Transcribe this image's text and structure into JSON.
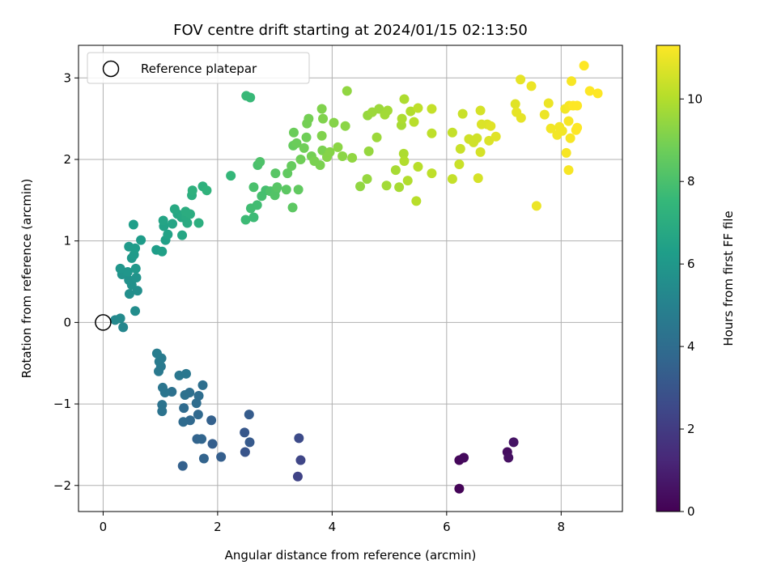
{
  "chart_data": {
    "type": "scatter",
    "title": "FOV centre drift starting at 2024/01/15 02:13:50",
    "xlabel": "Angular distance from reference (arcmin)",
    "ylabel": "Rotation from reference (arcmin)",
    "xlim": [
      -0.43,
      9.07
    ],
    "ylim": [
      -2.32,
      3.4
    ],
    "xticks": [
      0,
      2,
      4,
      6,
      8
    ],
    "yticks": [
      -2,
      -1,
      0,
      1,
      2,
      3
    ],
    "grid": true,
    "legend": {
      "position": "top-left",
      "entries": [
        {
          "label": "Reference platepar",
          "marker": "open-circle"
        }
      ]
    },
    "reference_point": {
      "x": 0,
      "y": 0
    },
    "colorbar": {
      "label": "Hours from first FF file",
      "range": [
        0,
        11.3
      ],
      "ticks": [
        0,
        2,
        4,
        6,
        8,
        10
      ],
      "colormap": "viridis"
    },
    "colormap_stops": [
      "#440154",
      "#482878",
      "#3e4989",
      "#31688e",
      "#26828e",
      "#1f9e89",
      "#35b779",
      "#6ece58",
      "#b5de2b",
      "#fde725"
    ],
    "points": [
      {
        "x": 6.22,
        "y": -2.04,
        "h": 0.1
      },
      {
        "x": 6.22,
        "y": -1.69,
        "h": 0.2
      },
      {
        "x": 6.3,
        "y": -1.66,
        "h": 0.3
      },
      {
        "x": 7.06,
        "y": -1.59,
        "h": 0.4
      },
      {
        "x": 7.08,
        "y": -1.66,
        "h": 0.5
      },
      {
        "x": 7.17,
        "y": -1.47,
        "h": 0.6
      },
      {
        "x": 3.4,
        "y": -1.89,
        "h": 2.3
      },
      {
        "x": 3.45,
        "y": -1.69,
        "h": 2.4
      },
      {
        "x": 3.42,
        "y": -1.42,
        "h": 2.6
      },
      {
        "x": 2.48,
        "y": -1.59,
        "h": 3.0
      },
      {
        "x": 2.47,
        "y": -1.35,
        "h": 3.1
      },
      {
        "x": 2.56,
        "y": -1.47,
        "h": 3.2
      },
      {
        "x": 2.55,
        "y": -1.13,
        "h": 3.3
      },
      {
        "x": 2.06,
        "y": -1.65,
        "h": 3.4
      },
      {
        "x": 1.91,
        "y": -1.49,
        "h": 3.4
      },
      {
        "x": 1.89,
        "y": -1.2,
        "h": 3.5
      },
      {
        "x": 1.39,
        "y": -1.76,
        "h": 3.5
      },
      {
        "x": 1.76,
        "y": -1.67,
        "h": 3.6
      },
      {
        "x": 1.64,
        "y": -1.43,
        "h": 3.6
      },
      {
        "x": 1.72,
        "y": -1.43,
        "h": 3.7
      },
      {
        "x": 1.66,
        "y": -1.13,
        "h": 3.8
      },
      {
        "x": 1.52,
        "y": -1.2,
        "h": 3.8
      },
      {
        "x": 1.4,
        "y": -1.22,
        "h": 3.9
      },
      {
        "x": 1.41,
        "y": -1.05,
        "h": 3.9
      },
      {
        "x": 1.63,
        "y": -0.99,
        "h": 4.0
      },
      {
        "x": 1.67,
        "y": -0.9,
        "h": 4.0
      },
      {
        "x": 1.74,
        "y": -0.77,
        "h": 4.1
      },
      {
        "x": 1.51,
        "y": -0.86,
        "h": 4.1
      },
      {
        "x": 1.43,
        "y": -0.89,
        "h": 4.2
      },
      {
        "x": 1.2,
        "y": -0.85,
        "h": 4.2
      },
      {
        "x": 1.03,
        "y": -1.09,
        "h": 4.3
      },
      {
        "x": 1.03,
        "y": -1.01,
        "h": 4.3
      },
      {
        "x": 1.08,
        "y": -0.86,
        "h": 4.4
      },
      {
        "x": 1.04,
        "y": -0.8,
        "h": 4.4
      },
      {
        "x": 1.33,
        "y": -0.65,
        "h": 4.5
      },
      {
        "x": 1.45,
        "y": -0.63,
        "h": 4.5
      },
      {
        "x": 0.97,
        "y": -0.6,
        "h": 4.6
      },
      {
        "x": 1.01,
        "y": -0.54,
        "h": 4.6
      },
      {
        "x": 0.98,
        "y": -0.48,
        "h": 4.7
      },
      {
        "x": 1.02,
        "y": -0.44,
        "h": 4.7
      },
      {
        "x": 0.94,
        "y": -0.38,
        "h": 4.8
      },
      {
        "x": 0.35,
        "y": -0.06,
        "h": 5.2
      },
      {
        "x": 0.21,
        "y": 0.03,
        "h": 5.3
      },
      {
        "x": 0.3,
        "y": 0.05,
        "h": 5.4
      },
      {
        "x": 0.56,
        "y": 0.14,
        "h": 5.5
      },
      {
        "x": 0.46,
        "y": 0.35,
        "h": 5.6
      },
      {
        "x": 0.6,
        "y": 0.39,
        "h": 5.6
      },
      {
        "x": 0.5,
        "y": 0.46,
        "h": 5.7
      },
      {
        "x": 0.45,
        "y": 0.52,
        "h": 5.7
      },
      {
        "x": 0.58,
        "y": 0.55,
        "h": 5.8
      },
      {
        "x": 0.33,
        "y": 0.59,
        "h": 5.8
      },
      {
        "x": 0.43,
        "y": 0.62,
        "h": 5.9
      },
      {
        "x": 0.3,
        "y": 0.66,
        "h": 5.9
      },
      {
        "x": 0.57,
        "y": 0.66,
        "h": 6.0
      },
      {
        "x": 0.5,
        "y": 0.79,
        "h": 6.0
      },
      {
        "x": 0.54,
        "y": 0.83,
        "h": 6.1
      },
      {
        "x": 0.45,
        "y": 0.93,
        "h": 6.1
      },
      {
        "x": 0.56,
        "y": 0.91,
        "h": 6.2
      },
      {
        "x": 0.66,
        "y": 1.01,
        "h": 6.2
      },
      {
        "x": 0.53,
        "y": 1.2,
        "h": 6.3
      },
      {
        "x": 0.93,
        "y": 0.89,
        "h": 6.3
      },
      {
        "x": 1.03,
        "y": 0.87,
        "h": 6.4
      },
      {
        "x": 1.09,
        "y": 1.01,
        "h": 6.4
      },
      {
        "x": 1.13,
        "y": 1.08,
        "h": 6.5
      },
      {
        "x": 1.06,
        "y": 1.18,
        "h": 6.5
      },
      {
        "x": 1.05,
        "y": 1.25,
        "h": 6.6
      },
      {
        "x": 1.21,
        "y": 1.21,
        "h": 6.6
      },
      {
        "x": 1.38,
        "y": 1.07,
        "h": 6.7
      },
      {
        "x": 1.3,
        "y": 1.33,
        "h": 6.7
      },
      {
        "x": 1.25,
        "y": 1.39,
        "h": 6.8
      },
      {
        "x": 1.37,
        "y": 1.29,
        "h": 6.8
      },
      {
        "x": 1.47,
        "y": 1.22,
        "h": 6.9
      },
      {
        "x": 1.45,
        "y": 1.3,
        "h": 6.9
      },
      {
        "x": 1.44,
        "y": 1.36,
        "h": 7.0
      },
      {
        "x": 1.52,
        "y": 1.33,
        "h": 7.0
      },
      {
        "x": 1.67,
        "y": 1.22,
        "h": 7.1
      },
      {
        "x": 1.55,
        "y": 1.56,
        "h": 7.1
      },
      {
        "x": 1.56,
        "y": 1.62,
        "h": 7.2
      },
      {
        "x": 1.74,
        "y": 1.67,
        "h": 7.2
      },
      {
        "x": 1.81,
        "y": 1.62,
        "h": 7.3
      },
      {
        "x": 2.23,
        "y": 1.8,
        "h": 7.5
      },
      {
        "x": 2.5,
        "y": 2.78,
        "h": 7.6
      },
      {
        "x": 2.57,
        "y": 2.76,
        "h": 7.6
      },
      {
        "x": 2.49,
        "y": 1.26,
        "h": 7.7
      },
      {
        "x": 2.63,
        "y": 1.29,
        "h": 7.7
      },
      {
        "x": 2.58,
        "y": 1.4,
        "h": 7.8
      },
      {
        "x": 2.69,
        "y": 1.44,
        "h": 7.8
      },
      {
        "x": 2.77,
        "y": 1.55,
        "h": 7.9
      },
      {
        "x": 2.84,
        "y": 1.62,
        "h": 7.9
      },
      {
        "x": 2.63,
        "y": 1.66,
        "h": 8.0
      },
      {
        "x": 2.7,
        "y": 1.93,
        "h": 8.0
      },
      {
        "x": 2.74,
        "y": 1.97,
        "h": 8.1
      },
      {
        "x": 2.92,
        "y": 1.61,
        "h": 8.1
      },
      {
        "x": 3.0,
        "y": 1.56,
        "h": 8.2
      },
      {
        "x": 3.02,
        "y": 1.63,
        "h": 8.2
      },
      {
        "x": 3.04,
        "y": 1.66,
        "h": 8.3
      },
      {
        "x": 3.01,
        "y": 1.83,
        "h": 8.3
      },
      {
        "x": 3.2,
        "y": 1.63,
        "h": 8.4
      },
      {
        "x": 3.31,
        "y": 1.41,
        "h": 8.4
      },
      {
        "x": 3.41,
        "y": 1.63,
        "h": 8.5
      },
      {
        "x": 3.22,
        "y": 1.83,
        "h": 8.5
      },
      {
        "x": 3.29,
        "y": 1.92,
        "h": 8.6
      },
      {
        "x": 3.32,
        "y": 2.17,
        "h": 8.6
      },
      {
        "x": 3.38,
        "y": 2.2,
        "h": 8.7
      },
      {
        "x": 3.33,
        "y": 2.33,
        "h": 8.7
      },
      {
        "x": 3.45,
        "y": 2.0,
        "h": 8.8
      },
      {
        "x": 3.51,
        "y": 2.14,
        "h": 8.8
      },
      {
        "x": 3.55,
        "y": 2.27,
        "h": 8.8
      },
      {
        "x": 3.56,
        "y": 2.44,
        "h": 8.9
      },
      {
        "x": 3.59,
        "y": 2.5,
        "h": 8.9
      },
      {
        "x": 3.64,
        "y": 2.04,
        "h": 8.9
      },
      {
        "x": 3.69,
        "y": 1.98,
        "h": 9.0
      },
      {
        "x": 3.79,
        "y": 1.93,
        "h": 9.0
      },
      {
        "x": 3.83,
        "y": 2.11,
        "h": 9.0
      },
      {
        "x": 3.82,
        "y": 2.29,
        "h": 9.1
      },
      {
        "x": 3.84,
        "y": 2.5,
        "h": 9.1
      },
      {
        "x": 3.82,
        "y": 2.62,
        "h": 9.1
      },
      {
        "x": 3.91,
        "y": 2.03,
        "h": 9.2
      },
      {
        "x": 3.96,
        "y": 2.09,
        "h": 9.2
      },
      {
        "x": 4.03,
        "y": 2.45,
        "h": 9.2
      },
      {
        "x": 4.1,
        "y": 2.15,
        "h": 9.3
      },
      {
        "x": 4.18,
        "y": 2.04,
        "h": 9.3
      },
      {
        "x": 4.23,
        "y": 2.41,
        "h": 9.3
      },
      {
        "x": 4.26,
        "y": 2.84,
        "h": 9.4
      },
      {
        "x": 4.35,
        "y": 2.02,
        "h": 9.4
      },
      {
        "x": 4.49,
        "y": 1.67,
        "h": 9.4
      },
      {
        "x": 4.61,
        "y": 1.76,
        "h": 9.5
      },
      {
        "x": 4.64,
        "y": 2.1,
        "h": 9.5
      },
      {
        "x": 4.62,
        "y": 2.54,
        "h": 9.5
      },
      {
        "x": 4.7,
        "y": 2.58,
        "h": 9.6
      },
      {
        "x": 4.78,
        "y": 2.27,
        "h": 9.6
      },
      {
        "x": 4.82,
        "y": 2.62,
        "h": 9.6
      },
      {
        "x": 4.92,
        "y": 2.55,
        "h": 9.7
      },
      {
        "x": 4.97,
        "y": 2.6,
        "h": 9.7
      },
      {
        "x": 4.95,
        "y": 1.68,
        "h": 9.7
      },
      {
        "x": 5.11,
        "y": 1.87,
        "h": 9.8
      },
      {
        "x": 5.17,
        "y": 1.66,
        "h": 9.8
      },
      {
        "x": 5.21,
        "y": 2.42,
        "h": 9.8
      },
      {
        "x": 5.22,
        "y": 2.5,
        "h": 9.9
      },
      {
        "x": 5.26,
        "y": 2.74,
        "h": 9.9
      },
      {
        "x": 5.25,
        "y": 2.07,
        "h": 9.9
      },
      {
        "x": 5.26,
        "y": 1.98,
        "h": 10.0
      },
      {
        "x": 5.32,
        "y": 1.74,
        "h": 10.0
      },
      {
        "x": 5.37,
        "y": 2.59,
        "h": 10.0
      },
      {
        "x": 5.43,
        "y": 2.46,
        "h": 10.1
      },
      {
        "x": 5.47,
        "y": 1.49,
        "h": 10.1
      },
      {
        "x": 5.5,
        "y": 1.91,
        "h": 10.1
      },
      {
        "x": 5.5,
        "y": 2.63,
        "h": 10.2
      },
      {
        "x": 5.74,
        "y": 1.83,
        "h": 10.2
      },
      {
        "x": 5.74,
        "y": 2.32,
        "h": 10.2
      },
      {
        "x": 5.74,
        "y": 2.62,
        "h": 10.3
      },
      {
        "x": 6.1,
        "y": 1.76,
        "h": 10.3
      },
      {
        "x": 6.1,
        "y": 2.33,
        "h": 10.3
      },
      {
        "x": 6.22,
        "y": 1.94,
        "h": 10.4
      },
      {
        "x": 6.24,
        "y": 2.13,
        "h": 10.4
      },
      {
        "x": 6.28,
        "y": 2.56,
        "h": 10.4
      },
      {
        "x": 6.39,
        "y": 2.25,
        "h": 10.5
      },
      {
        "x": 6.47,
        "y": 2.21,
        "h": 10.5
      },
      {
        "x": 6.53,
        "y": 2.26,
        "h": 10.5
      },
      {
        "x": 6.55,
        "y": 1.77,
        "h": 10.6
      },
      {
        "x": 6.59,
        "y": 2.09,
        "h": 10.6
      },
      {
        "x": 6.59,
        "y": 2.6,
        "h": 10.6
      },
      {
        "x": 6.61,
        "y": 2.43,
        "h": 10.7
      },
      {
        "x": 6.71,
        "y": 2.43,
        "h": 10.7
      },
      {
        "x": 6.74,
        "y": 2.23,
        "h": 10.7
      },
      {
        "x": 6.77,
        "y": 2.41,
        "h": 10.8
      },
      {
        "x": 6.86,
        "y": 2.28,
        "h": 10.8
      },
      {
        "x": 7.2,
        "y": 2.68,
        "h": 10.8
      },
      {
        "x": 7.22,
        "y": 2.58,
        "h": 10.9
      },
      {
        "x": 7.29,
        "y": 2.98,
        "h": 10.9
      },
      {
        "x": 7.3,
        "y": 2.51,
        "h": 10.9
      },
      {
        "x": 7.48,
        "y": 2.9,
        "h": 11.0
      },
      {
        "x": 7.57,
        "y": 1.43,
        "h": 11.0
      },
      {
        "x": 7.71,
        "y": 2.55,
        "h": 11.0
      },
      {
        "x": 7.78,
        "y": 2.69,
        "h": 11.0
      },
      {
        "x": 7.82,
        "y": 2.38,
        "h": 11.1
      },
      {
        "x": 7.93,
        "y": 2.3,
        "h": 11.1
      },
      {
        "x": 7.97,
        "y": 2.4,
        "h": 11.1
      },
      {
        "x": 8.02,
        "y": 2.35,
        "h": 11.1
      },
      {
        "x": 8.07,
        "y": 2.62,
        "h": 11.1
      },
      {
        "x": 8.09,
        "y": 2.08,
        "h": 11.2
      },
      {
        "x": 8.13,
        "y": 1.87,
        "h": 11.2
      },
      {
        "x": 8.14,
        "y": 2.66,
        "h": 11.2
      },
      {
        "x": 8.13,
        "y": 2.47,
        "h": 11.2
      },
      {
        "x": 8.18,
        "y": 2.96,
        "h": 11.2
      },
      {
        "x": 8.16,
        "y": 2.26,
        "h": 11.2
      },
      {
        "x": 8.21,
        "y": 2.66,
        "h": 11.3
      },
      {
        "x": 8.26,
        "y": 2.36,
        "h": 11.3
      },
      {
        "x": 8.28,
        "y": 2.39,
        "h": 11.3
      },
      {
        "x": 8.28,
        "y": 2.66,
        "h": 11.3
      },
      {
        "x": 8.4,
        "y": 3.15,
        "h": 11.3
      },
      {
        "x": 8.5,
        "y": 2.84,
        "h": 11.3
      },
      {
        "x": 8.64,
        "y": 2.81,
        "h": 11.3
      }
    ]
  }
}
